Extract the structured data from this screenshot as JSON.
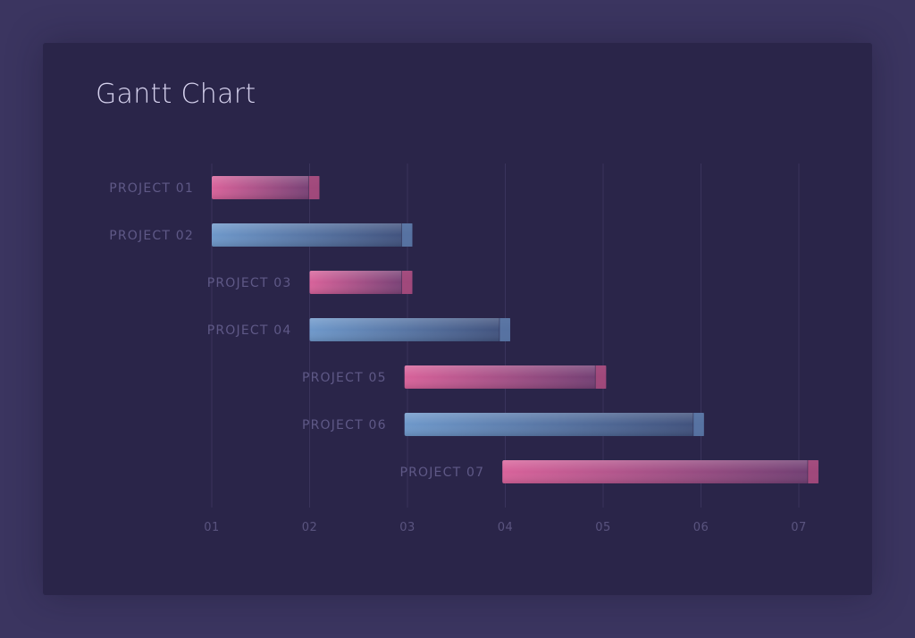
{
  "chart_data": {
    "type": "gantt",
    "title": "Gantt Chart",
    "xlabel": "",
    "ylabel": "",
    "x_ticks": [
      "01",
      "02",
      "03",
      "04",
      "05",
      "06",
      "07"
    ],
    "xlim": [
      1,
      7.2
    ],
    "grid": true,
    "legend": "none",
    "tasks": [
      {
        "label": "PROJECT 01",
        "start": 1,
        "end": 2.1,
        "color": "pink"
      },
      {
        "label": "PROJECT 02",
        "start": 1,
        "end": 3.05,
        "color": "blue"
      },
      {
        "label": "PROJECT 03",
        "start": 2,
        "end": 3.05,
        "color": "pink"
      },
      {
        "label": "PROJECT 04",
        "start": 2,
        "end": 4.05,
        "color": "blue"
      },
      {
        "label": "PROJECT 05",
        "start": 2.97,
        "end": 5.03,
        "color": "pink"
      },
      {
        "label": "PROJECT 06",
        "start": 2.97,
        "end": 6.03,
        "color": "blue"
      },
      {
        "label": "PROJECT 07",
        "start": 3.97,
        "end": 7.2,
        "color": "pink"
      }
    ]
  },
  "colors": {
    "pink": "#d25c8c",
    "blue": "#6b94c4",
    "background": "#3b3560",
    "card": "#2a2549"
  }
}
